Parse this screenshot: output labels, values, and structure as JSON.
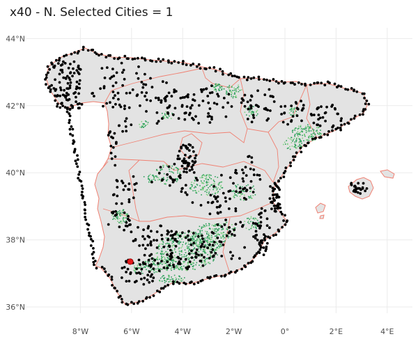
{
  "title": "x40 - N. Selected Cities = 1",
  "chart_data": {
    "type": "map",
    "title": "x40 - N. Selected Cities = 1",
    "xlabel": "",
    "ylabel": "",
    "x_ticks": [
      {
        "value": -8,
        "label": "8°W"
      },
      {
        "value": -6,
        "label": "6°W"
      },
      {
        "value": -4,
        "label": "4°W"
      },
      {
        "value": -2,
        "label": "2°W"
      },
      {
        "value": 0,
        "label": "0°"
      },
      {
        "value": 2,
        "label": "2°E"
      },
      {
        "value": 4,
        "label": "4°E"
      }
    ],
    "y_ticks": [
      {
        "value": 36,
        "label": "36°N"
      },
      {
        "value": 38,
        "label": "38°N"
      },
      {
        "value": 40,
        "label": "40°N"
      },
      {
        "value": 42,
        "label": "42°N"
      },
      {
        "value": 44,
        "label": "44°N"
      }
    ],
    "xlim": [
      -9.9,
      5.0
    ],
    "ylim": [
      35.7,
      44.3
    ],
    "grid": true,
    "selected_city": {
      "lon": -6.05,
      "lat": 37.35
    },
    "colors": {
      "land": "#e3e3e3",
      "border": "#f08072",
      "city": "#000000",
      "selected": "#e31a1c",
      "vegetation": "#2ca05a",
      "vegetation_light": "#7fd27f"
    }
  }
}
